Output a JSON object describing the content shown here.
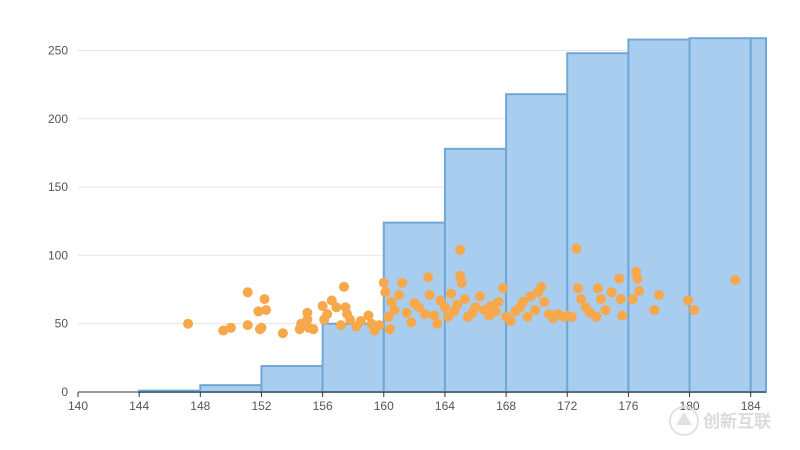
{
  "chart_data": {
    "type": "bar+scatter",
    "title": "",
    "xlabel": "",
    "ylabel": "",
    "xlim": [
      140,
      185
    ],
    "ylim": [
      0,
      265
    ],
    "x_ticks": [
      140,
      144,
      148,
      152,
      156,
      160,
      164,
      168,
      172,
      176,
      180,
      184
    ],
    "y_ticks": [
      0,
      50,
      100,
      150,
      200,
      250
    ],
    "grid": "horizontal",
    "histogram": {
      "bin_edges": [
        140,
        144,
        148,
        152,
        156,
        160,
        164,
        168,
        172,
        176,
        180,
        184,
        185
      ],
      "values": [
        0,
        1,
        5,
        19,
        50,
        124,
        178,
        218,
        248,
        258,
        259,
        259
      ],
      "color": "#a8cdee",
      "edge_color": "#6fa8d6"
    },
    "scatter": {
      "color": "#f7a84a",
      "points": [
        [
          147.2,
          50
        ],
        [
          149.5,
          45
        ],
        [
          150,
          47
        ],
        [
          151.1,
          73
        ],
        [
          151.1,
          49
        ],
        [
          151.8,
          59
        ],
        [
          152.2,
          68
        ],
        [
          152,
          47
        ],
        [
          152.3,
          60
        ],
        [
          151.9,
          46
        ],
        [
          153.4,
          43
        ],
        [
          154.5,
          46
        ],
        [
          154.6,
          50
        ],
        [
          155,
          58
        ],
        [
          155,
          53
        ],
        [
          155.1,
          47
        ],
        [
          155.4,
          46
        ],
        [
          156,
          63
        ],
        [
          156.1,
          53
        ],
        [
          156.3,
          57
        ],
        [
          156.6,
          67
        ],
        [
          156.9,
          62
        ],
        [
          157.2,
          49
        ],
        [
          157.4,
          77
        ],
        [
          157.5,
          62
        ],
        [
          157.6,
          57
        ],
        [
          157.8,
          53
        ],
        [
          158.2,
          48
        ],
        [
          158.5,
          52
        ],
        [
          159,
          56
        ],
        [
          159.2,
          50
        ],
        [
          159.4,
          45
        ],
        [
          159.7,
          49
        ],
        [
          160,
          80
        ],
        [
          160.1,
          73
        ],
        [
          160.3,
          55
        ],
        [
          160.4,
          46
        ],
        [
          160.5,
          66
        ],
        [
          160.7,
          60
        ],
        [
          161,
          71
        ],
        [
          161.2,
          80
        ],
        [
          161.5,
          58
        ],
        [
          161.8,
          51
        ],
        [
          162,
          65
        ],
        [
          162.3,
          62
        ],
        [
          162.7,
          57
        ],
        [
          162.9,
          84
        ],
        [
          163,
          71
        ],
        [
          163.3,
          56
        ],
        [
          163.5,
          50
        ],
        [
          163.7,
          67
        ],
        [
          164,
          62
        ],
        [
          164.2,
          55
        ],
        [
          164.4,
          72
        ],
        [
          164.6,
          59
        ],
        [
          164.8,
          64
        ],
        [
          165,
          104
        ],
        [
          165,
          85
        ],
        [
          165.1,
          80
        ],
        [
          165.3,
          68
        ],
        [
          165.5,
          55
        ],
        [
          165.8,
          58
        ],
        [
          166,
          62
        ],
        [
          166.3,
          70
        ],
        [
          166.6,
          60
        ],
        [
          166.9,
          56
        ],
        [
          167,
          63
        ],
        [
          167.3,
          59
        ],
        [
          167.5,
          66
        ],
        [
          167.8,
          76
        ],
        [
          168,
          55
        ],
        [
          168.3,
          52
        ],
        [
          168.6,
          59
        ],
        [
          168.9,
          62
        ],
        [
          169.1,
          66
        ],
        [
          169.4,
          55
        ],
        [
          169.6,
          70
        ],
        [
          169.9,
          60
        ],
        [
          170.1,
          73
        ],
        [
          170.3,
          77
        ],
        [
          170.5,
          66
        ],
        [
          170.8,
          57
        ],
        [
          171.1,
          54
        ],
        [
          171.4,
          57
        ],
        [
          171.8,
          55
        ],
        [
          172,
          56
        ],
        [
          172.3,
          55
        ],
        [
          172.6,
          105
        ],
        [
          172.7,
          76
        ],
        [
          172.9,
          68
        ],
        [
          173.2,
          62
        ],
        [
          173.5,
          58
        ],
        [
          173.9,
          55
        ],
        [
          174,
          76
        ],
        [
          174.2,
          68
        ],
        [
          174.5,
          60
        ],
        [
          174.9,
          73
        ],
        [
          175.4,
          83
        ],
        [
          175.5,
          68
        ],
        [
          175.6,
          56
        ],
        [
          176.3,
          68
        ],
        [
          176.5,
          88
        ],
        [
          176.6,
          83
        ],
        [
          176.7,
          74
        ],
        [
          177.7,
          60
        ],
        [
          178,
          71
        ],
        [
          179.9,
          67
        ],
        [
          180.3,
          60
        ],
        [
          183,
          82
        ]
      ]
    }
  },
  "watermark": {
    "text": "创新互联"
  }
}
